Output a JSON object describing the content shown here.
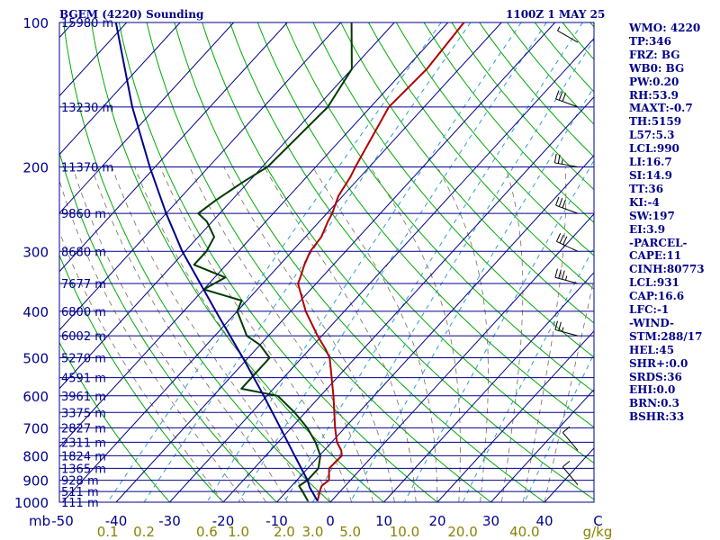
{
  "header": {
    "station": "BGEM (4220) Sounding",
    "time": "1100Z  1 MAY 25"
  },
  "indices": [
    "WMO: 4220",
    "TP:346",
    "FRZ: BG",
    "WB0: BG",
    "PW:0.20",
    "RH:53.9",
    "MAXT:-0.7",
    "TH:5159",
    "L57:5.3",
    "LCL:990",
    "LI:16.7",
    "SI:14.9",
    "TT:36",
    "KI:-4",
    "SW:197",
    "EI:3.9",
    "-PARCEL-",
    "CAPE:11",
    "CINH:80773",
    "LCL:931",
    "CAP:16.6",
    "LFC:-1",
    "-WIND-",
    "STM:288/17",
    "HEL:45",
    "SHR+:0.0",
    "SRDS:36",
    "EHI:0.0",
    "BRN:0.3",
    "BSHR:33"
  ],
  "chart_data": {
    "type": "line",
    "title": "BGEM (4220) Sounding",
    "xlabel": "C",
    "ylabel": "mb",
    "xlim": [
      -50,
      50
    ],
    "ylim": [
      1000,
      100
    ],
    "x_ticks": [
      "-50",
      "-40",
      "-30",
      "-20",
      "-10",
      "0",
      "10",
      "20",
      "30",
      "40",
      "C"
    ],
    "pressure_ticks": [
      "100",
      "200",
      "300",
      "400",
      "500",
      "600",
      "700",
      "800",
      "900",
      "1000"
    ],
    "mixing_ratio_labels": [
      "0.1",
      "0.2",
      "0.6",
      "1.0",
      "2.0",
      "3.0",
      "5.0",
      "10.0",
      "20.0",
      "40.0"
    ],
    "mixing_ratio_unit": "g/kg",
    "height_labels": [
      {
        "pressure": 100,
        "label": "15980 m"
      },
      {
        "pressure": 150,
        "label": "13230 m"
      },
      {
        "pressure": 200,
        "label": "11370 m"
      },
      {
        "pressure": 250,
        "label": "9860 m"
      },
      {
        "pressure": 300,
        "label": "8680 m"
      },
      {
        "pressure": 350,
        "label": "7677 m"
      },
      {
        "pressure": 400,
        "label": "6800 m"
      },
      {
        "pressure": 450,
        "label": "6002 m"
      },
      {
        "pressure": 500,
        "label": "5270 m"
      },
      {
        "pressure": 550,
        "label": "4591 m"
      },
      {
        "pressure": 600,
        "label": "3961 m"
      },
      {
        "pressure": 650,
        "label": "3375 m"
      },
      {
        "pressure": 700,
        "label": "2827 m"
      },
      {
        "pressure": 750,
        "label": "2311 m"
      },
      {
        "pressure": 800,
        "label": "1824 m"
      },
      {
        "pressure": 850,
        "label": "1365 m"
      },
      {
        "pressure": 900,
        "label": "928 m"
      },
      {
        "pressure": 950,
        "label": "511 m"
      },
      {
        "pressure": 1000,
        "label": "111 m"
      }
    ],
    "series": [
      {
        "color": "#b00000",
        "points": [
          {
            "p": 994,
            "t": -2.6
          },
          {
            "p": 950,
            "t": -3.8
          },
          {
            "p": 925,
            "t": -4.4
          },
          {
            "p": 900,
            "t": -4.0
          },
          {
            "p": 850,
            "t": -6.0
          },
          {
            "p": 800,
            "t": -5.8
          },
          {
            "p": 780,
            "t": -6.8
          },
          {
            "p": 750,
            "t": -9.0
          },
          {
            "p": 700,
            "t": -11.8
          },
          {
            "p": 600,
            "t": -17.6
          },
          {
            "p": 500,
            "t": -24.8
          },
          {
            "p": 480,
            "t": -27.0
          },
          {
            "p": 450,
            "t": -30.8
          },
          {
            "p": 400,
            "t": -37.2
          },
          {
            "p": 350,
            "t": -43.4
          },
          {
            "p": 340,
            "t": -44.0
          },
          {
            "p": 320,
            "t": -45.4
          },
          {
            "p": 300,
            "t": -46.6
          },
          {
            "p": 280,
            "t": -47.0
          },
          {
            "p": 260,
            "t": -48.4
          },
          {
            "p": 250,
            "t": -49.0
          },
          {
            "p": 230,
            "t": -50.8
          },
          {
            "p": 210,
            "t": -51.8
          },
          {
            "p": 200,
            "t": -52.6
          },
          {
            "p": 150,
            "t": -56.6
          },
          {
            "p": 125,
            "t": -56.0
          },
          {
            "p": 100,
            "t": -57.0
          }
        ]
      },
      {
        "color": "#003a00",
        "points": [
          {
            "p": 994,
            "t": -4.4
          },
          {
            "p": 960,
            "t": -6.4
          },
          {
            "p": 925,
            "t": -8.6
          },
          {
            "p": 900,
            "t": -8.0
          },
          {
            "p": 850,
            "t": -8.0
          },
          {
            "p": 800,
            "t": -9.8
          },
          {
            "p": 750,
            "t": -13.0
          },
          {
            "p": 700,
            "t": -17.0
          },
          {
            "p": 650,
            "t": -22.0
          },
          {
            "p": 600,
            "t": -28.0
          },
          {
            "p": 580,
            "t": -36.0
          },
          {
            "p": 540,
            "t": -36.0
          },
          {
            "p": 500,
            "t": -36.0
          },
          {
            "p": 470,
            "t": -40.0
          },
          {
            "p": 450,
            "t": -44.0
          },
          {
            "p": 400,
            "t": -50.0
          },
          {
            "p": 380,
            "t": -51.0
          },
          {
            "p": 360,
            "t": -60.0
          },
          {
            "p": 340,
            "t": -58.0
          },
          {
            "p": 320,
            "t": -66.0
          },
          {
            "p": 300,
            "t": -66.0
          },
          {
            "p": 280,
            "t": -67.0
          },
          {
            "p": 260,
            "t": -71.0
          },
          {
            "p": 250,
            "t": -74.0
          },
          {
            "p": 235,
            "t": -73.0
          },
          {
            "p": 215,
            "t": -71.0
          },
          {
            "p": 200,
            "t": -69.0
          },
          {
            "p": 150,
            "t": -68.0
          },
          {
            "p": 125,
            "t": -70.0
          },
          {
            "p": 100,
            "t": -78.0
          }
        ]
      },
      {
        "color": "#00008b",
        "points": [
          {
            "p": 994,
            "t": -2.6
          },
          {
            "p": 931,
            "t": -6.4
          },
          {
            "p": 900,
            "t": -8.0
          },
          {
            "p": 850,
            "t": -11.2
          },
          {
            "p": 800,
            "t": -14.6
          },
          {
            "p": 700,
            "t": -22.0
          },
          {
            "p": 600,
            "t": -30.6
          },
          {
            "p": 500,
            "t": -41.0
          },
          {
            "p": 400,
            "t": -54.0
          },
          {
            "p": 300,
            "t": -70.5
          },
          {
            "p": 250,
            "t": -80.0
          },
          {
            "p": 200,
            "t": -91.0
          },
          {
            "p": 150,
            "t": -104.5
          },
          {
            "p": 100,
            "t": -122.0
          }
        ]
      }
    ],
    "wind_barbs": [
      {
        "p": 110,
        "dir": 300,
        "speed": 5
      },
      {
        "p": 150,
        "dir": 290,
        "speed": 30
      },
      {
        "p": 200,
        "dir": 280,
        "speed": 25
      },
      {
        "p": 250,
        "dir": 290,
        "speed": 30
      },
      {
        "p": 300,
        "dir": 295,
        "speed": 30
      },
      {
        "p": 350,
        "dir": 285,
        "speed": 35
      },
      {
        "p": 450,
        "dir": 285,
        "speed": 25
      },
      {
        "p": 780,
        "dir": 320,
        "speed": 10
      },
      {
        "p": 920,
        "dir": 320,
        "speed": 10
      }
    ]
  },
  "colors": {
    "isobar": "#00008b",
    "isotherm": "#00008b",
    "dry_adiabat": "#00aa00",
    "moist_adiabat": "#7a6a58",
    "mixing_ratio": "#2aa0cc",
    "temperature": "#b00000",
    "dewpoint": "#003a00",
    "parcel": "#00008b",
    "label": "#00008b",
    "mixing_label": "#8b8000"
  }
}
